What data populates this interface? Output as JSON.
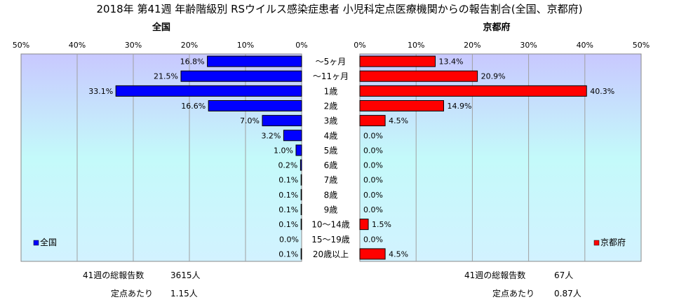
{
  "chart_data": {
    "type": "bar",
    "orientation": "horizontal",
    "title": "2018年 第41週 年齢階級別 RSウイルス感染症患者 小児科定点医療機関からの報告割合(全国、京都府)",
    "categories": [
      "～5ヶ月",
      "～11ヶ月",
      "1歳",
      "2歳",
      "3歳",
      "4歳",
      "5歳",
      "6歳",
      "7歳",
      "8歳",
      "9歳",
      "10～14歳",
      "15～19歳",
      "20歳以上"
    ],
    "xlim": [
      0,
      50
    ],
    "tick_labels": [
      "0%",
      "10%",
      "20%",
      "30%",
      "40%",
      "50%"
    ],
    "grid": true,
    "panels": [
      {
        "name": "全国",
        "heading": "全国",
        "legend": "全国",
        "legend_position": "bottom-left",
        "color": "#0000ff",
        "values": [
          16.8,
          21.5,
          33.1,
          16.6,
          7.0,
          3.2,
          1.0,
          0.2,
          0.1,
          0.1,
          0.1,
          0.1,
          0.0,
          0.1
        ],
        "labels": [
          "16.8%",
          "21.5%",
          "33.1%",
          "16.6%",
          "7.0%",
          "3.2%",
          "1.0%",
          "0.2%",
          "0.1%",
          "0.1%",
          "0.1%",
          "0.1%",
          "0.0%",
          "0.1%"
        ]
      },
      {
        "name": "京都府",
        "heading": "京都府",
        "legend": "京都府",
        "legend_position": "bottom-right",
        "color": "#ff0000",
        "values": [
          13.4,
          20.9,
          40.3,
          14.9,
          4.5,
          0.0,
          0.0,
          0.0,
          0.0,
          0.0,
          0.0,
          1.5,
          0.0,
          4.5
        ],
        "labels": [
          "13.4%",
          "20.9%",
          "40.3%",
          "14.9%",
          "4.5%",
          "0.0%",
          "0.0%",
          "0.0%",
          "0.0%",
          "0.0%",
          "0.0%",
          "1.5%",
          "0.0%",
          "4.5%"
        ]
      }
    ]
  },
  "footer": {
    "national": {
      "total_label": "41週の総報告数",
      "total_value": "3615人",
      "per_site_label": "定点あたり",
      "per_site_value": "1.15人"
    },
    "kyoto": {
      "total_label": "41週の総報告数",
      "total_value": "67人",
      "per_site_label": "定点あたり",
      "per_site_value": "0.87人"
    }
  }
}
